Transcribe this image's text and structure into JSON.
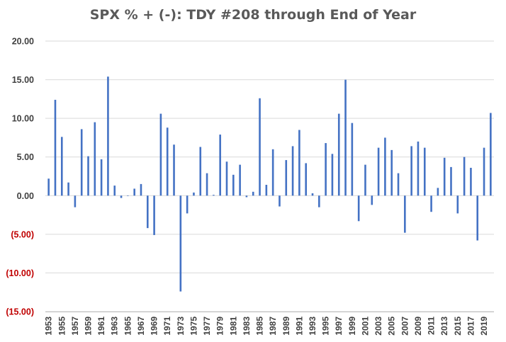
{
  "chart_data": {
    "type": "bar",
    "title": "SPX % + (-): TDY #208 through End of Year",
    "xlabel": "",
    "ylabel": "",
    "ylim": [
      -15,
      20
    ],
    "grid": true,
    "legend": "none",
    "bar_color": "#4472c4",
    "grid_color": "#d9d9d9",
    "negative_label_color": "#c00000",
    "positive_label_color": "#404040",
    "y_ticks": [
      {
        "value": 20,
        "label": "20.00"
      },
      {
        "value": 15,
        "label": "15.00"
      },
      {
        "value": 10,
        "label": "10.00"
      },
      {
        "value": 5,
        "label": "5.00"
      },
      {
        "value": 0,
        "label": "0.00"
      },
      {
        "value": -5,
        "label": "(5.00)"
      },
      {
        "value": -10,
        "label": "(10.00)"
      },
      {
        "value": -15,
        "label": "(15.00)"
      }
    ],
    "categories": [
      1953,
      1954,
      1955,
      1956,
      1957,
      1958,
      1959,
      1960,
      1961,
      1962,
      1963,
      1964,
      1965,
      1966,
      1967,
      1968,
      1969,
      1970,
      1971,
      1972,
      1973,
      1974,
      1975,
      1976,
      1977,
      1978,
      1979,
      1980,
      1981,
      1982,
      1983,
      1984,
      1985,
      1986,
      1987,
      1988,
      1989,
      1990,
      1991,
      1992,
      1993,
      1994,
      1995,
      1996,
      1997,
      1998,
      1999,
      2000,
      2001,
      2002,
      2003,
      2004,
      2005,
      2006,
      2007,
      2008,
      2009,
      2010,
      2011,
      2012,
      2013,
      2014,
      2015,
      2016,
      2017,
      2018,
      2019,
      2020
    ],
    "x_tick_labels": [
      "1953",
      "1955",
      "1957",
      "1959",
      "1961",
      "1963",
      "1965",
      "1967",
      "1969",
      "1971",
      "1973",
      "1975",
      "1977",
      "1979",
      "1981",
      "1983",
      "1985",
      "1987",
      "1989",
      "1991",
      "1993",
      "1995",
      "1997",
      "1999",
      "2001",
      "2003",
      "2005",
      "2007",
      "2009",
      "2011",
      "2013",
      "2015",
      "2017",
      "2019"
    ],
    "values": [
      2.2,
      12.4,
      7.6,
      1.7,
      -1.5,
      8.6,
      5.1,
      9.5,
      4.7,
      15.4,
      1.3,
      -0.3,
      0.0,
      0.9,
      1.5,
      -4.2,
      -5.1,
      10.6,
      8.8,
      6.6,
      -12.4,
      -2.3,
      0.4,
      6.3,
      2.9,
      0.1,
      7.9,
      4.4,
      2.7,
      4.0,
      -0.2,
      0.5,
      12.6,
      1.4,
      6.0,
      -1.4,
      4.6,
      6.4,
      8.5,
      4.2,
      0.3,
      -1.5,
      6.8,
      5.4,
      10.6,
      15.0,
      9.4,
      -3.3,
      4.0,
      -1.2,
      6.2,
      7.5,
      5.9,
      2.9,
      -4.8,
      6.4,
      7.0,
      6.2,
      -2.1,
      1.0,
      4.9,
      3.7,
      -2.3,
      5.0,
      3.6,
      -5.8,
      6.2,
      10.7
    ]
  }
}
